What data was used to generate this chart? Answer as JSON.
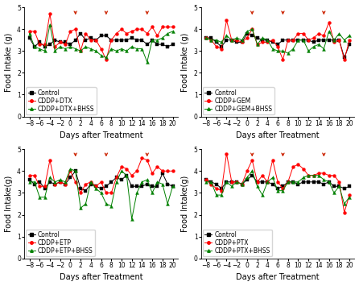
{
  "x": [
    -8,
    -7,
    -6,
    -5,
    -4,
    -3,
    -2,
    -1,
    0,
    1,
    2,
    3,
    4,
    5,
    6,
    7,
    8,
    9,
    10,
    11,
    12,
    13,
    14,
    15,
    16,
    17,
    18,
    19,
    20
  ],
  "subplots": [
    {
      "legend": [
        "Control",
        "CDDP+DTX",
        "CDDP+DTX+BHSS"
      ],
      "arrows": [
        1,
        7,
        15
      ],
      "ylabel": "Food Intake (g)",
      "series": [
        [
          3.6,
          3.2,
          3.4,
          3.2,
          3.3,
          3.5,
          3.4,
          3.4,
          3.3,
          3.5,
          3.8,
          3.5,
          3.6,
          3.5,
          3.7,
          3.7,
          3.5,
          3.5,
          3.5,
          3.5,
          3.6,
          3.5,
          3.5,
          3.3,
          3.5,
          3.3,
          3.3,
          3.2,
          3.3
        ],
        [
          3.9,
          3.9,
          3.3,
          3.3,
          4.7,
          3.2,
          3.4,
          3.3,
          3.9,
          4.0,
          3.0,
          3.8,
          3.5,
          3.5,
          3.1,
          2.6,
          3.5,
          3.8,
          4.0,
          3.8,
          3.9,
          4.0,
          4.0,
          3.8,
          4.1,
          3.7,
          4.1,
          4.1,
          4.1
        ],
        [
          3.8,
          3.2,
          3.1,
          3.0,
          4.2,
          3.0,
          3.2,
          3.1,
          3.2,
          3.1,
          3.0,
          3.2,
          3.1,
          3.0,
          2.8,
          2.7,
          3.1,
          3.0,
          3.1,
          3.0,
          3.2,
          3.1,
          3.1,
          2.5,
          3.5,
          3.5,
          3.6,
          3.8,
          3.9
        ]
      ]
    },
    {
      "legend": [
        "Control",
        "CDDP+GEM",
        "CDDP+GEM+BHSS"
      ],
      "arrows": [
        1,
        7,
        15
      ],
      "ylabel": "Food Intake (g)",
      "series": [
        [
          3.6,
          3.6,
          3.4,
          3.2,
          3.5,
          3.5,
          3.4,
          3.4,
          3.8,
          3.7,
          3.6,
          3.5,
          3.5,
          3.4,
          3.3,
          3.5,
          3.5,
          3.5,
          3.5,
          3.5,
          3.5,
          3.4,
          3.5,
          3.5,
          3.5,
          3.5,
          3.5,
          2.7,
          3.3
        ],
        [
          3.6,
          3.5,
          3.2,
          3.1,
          4.4,
          3.5,
          3.5,
          3.4,
          3.6,
          4.0,
          3.3,
          3.4,
          3.4,
          3.5,
          3.2,
          2.6,
          3.5,
          3.5,
          3.8,
          3.8,
          3.5,
          3.6,
          3.8,
          3.7,
          4.3,
          3.4,
          3.5,
          2.6,
          3.5
        ],
        [
          3.6,
          3.5,
          3.5,
          3.4,
          3.7,
          3.5,
          3.6,
          3.5,
          3.9,
          4.0,
          3.3,
          3.6,
          3.5,
          3.1,
          3.0,
          3.0,
          2.9,
          3.1,
          3.5,
          3.5,
          3.0,
          3.2,
          3.3,
          3.1,
          3.9,
          3.5,
          3.8,
          3.5,
          3.7
        ]
      ]
    },
    {
      "legend": [
        "Control",
        "CDDP+ETP",
        "CDDP+ETP+BHSS"
      ],
      "arrows": [
        1,
        7,
        15
      ],
      "ylabel": "Food Intake(g)",
      "series": [
        [
          3.6,
          3.4,
          3.5,
          3.2,
          3.5,
          3.4,
          3.5,
          3.4,
          3.7,
          4.0,
          3.2,
          3.1,
          3.4,
          3.3,
          3.2,
          3.3,
          3.5,
          3.7,
          3.6,
          3.8,
          3.3,
          3.3,
          3.3,
          3.4,
          3.3,
          3.3,
          3.9,
          3.4,
          3.3
        ],
        [
          3.8,
          3.8,
          3.3,
          3.3,
          4.5,
          3.4,
          3.5,
          3.4,
          4.0,
          3.5,
          3.0,
          3.4,
          3.5,
          3.3,
          3.5,
          3.0,
          3.0,
          3.7,
          4.2,
          4.1,
          3.8,
          4.0,
          4.6,
          4.5,
          3.9,
          4.2,
          4.0,
          4.0,
          4.0
        ],
        [
          3.5,
          3.5,
          2.8,
          2.8,
          3.7,
          3.5,
          3.6,
          3.5,
          4.1,
          4.0,
          2.3,
          2.5,
          3.5,
          3.2,
          3.0,
          2.5,
          2.4,
          3.5,
          4.0,
          3.8,
          1.8,
          3.0,
          3.5,
          3.6,
          3.0,
          3.5,
          3.4,
          2.5,
          3.3
        ]
      ]
    },
    {
      "legend": [
        "Control",
        "CDDP+PTX",
        "CDDP+PTX+BHSS"
      ],
      "arrows": [
        1,
        7,
        15
      ],
      "ylabel": "Food Intake(g)",
      "series": [
        [
          3.6,
          3.5,
          3.4,
          3.2,
          3.5,
          3.5,
          3.5,
          3.4,
          3.6,
          3.8,
          3.5,
          3.5,
          3.5,
          3.4,
          3.2,
          3.3,
          3.5,
          3.5,
          3.4,
          3.5,
          3.5,
          3.5,
          3.5,
          3.4,
          3.5,
          3.3,
          3.3,
          3.2,
          3.3
        ],
        [
          3.6,
          3.4,
          3.2,
          3.1,
          4.8,
          3.5,
          3.5,
          3.4,
          4.0,
          4.5,
          3.5,
          3.8,
          3.5,
          4.5,
          3.5,
          3.2,
          3.5,
          4.2,
          4.3,
          4.1,
          3.8,
          3.8,
          3.9,
          3.9,
          3.8,
          3.8,
          3.5,
          2.1,
          2.9
        ],
        [
          3.5,
          3.5,
          2.9,
          2.9,
          3.5,
          3.3,
          3.5,
          3.4,
          3.7,
          4.0,
          3.3,
          2.9,
          3.5,
          3.7,
          3.1,
          3.1,
          3.5,
          3.5,
          3.5,
          3.7,
          3.8,
          3.8,
          3.8,
          3.6,
          3.5,
          3.0,
          3.3,
          2.5,
          2.8
        ]
      ]
    }
  ],
  "xlabel": "Days after Treatment",
  "ylim": [
    0,
    5
  ],
  "yticks": [
    0,
    1,
    2,
    3,
    4,
    5
  ],
  "xticks": [
    -8,
    -6,
    -4,
    -2,
    0,
    2,
    4,
    6,
    8,
    10,
    12,
    14,
    16,
    18,
    20
  ],
  "colors": [
    "black",
    "red",
    "green"
  ],
  "markers": [
    "s",
    "o",
    "^"
  ],
  "arrow_color": "#cc2200",
  "markersize": 2.8,
  "linewidth": 0.7,
  "fontsize_legend": 5.5,
  "fontsize_axis_label": 7,
  "fontsize_tick": 5.5
}
